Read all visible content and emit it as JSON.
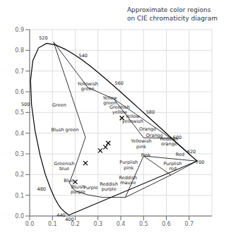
{
  "chart_data": {
    "type": "line",
    "title": "Approximate color regions",
    "subtitle": "on CIE chromaticity diagram",
    "xlim": [
      0,
      0.8
    ],
    "ylim": [
      0,
      0.9
    ],
    "xticks": [
      {
        "value": 0,
        "label": "0.0"
      },
      0.1,
      0.2,
      0.3,
      0.4,
      0.5,
      0.6,
      0.7
    ],
    "yticks": [
      {
        "value": 0,
        "label": "0.0"
      },
      0.1,
      0.2,
      0.3,
      0.4,
      0.5,
      0.6,
      0.7,
      0.8,
      0.9
    ],
    "grid": true,
    "series": [
      {
        "type": "line",
        "color": "#000000",
        "line_style": "solid",
        "x": [
          0.1741,
          0.1738,
          0.1726,
          0.1714,
          0.1703,
          0.1689,
          0.1669,
          0.1644,
          0.1611,
          0.1566,
          0.151,
          0.144,
          0.1355,
          0.1241,
          0.1096,
          0.0913,
          0.0687,
          0.0454,
          0.0235,
          0.0082,
          0.0039,
          0.0139,
          0.0389,
          0.0743,
          0.1142,
          0.1547,
          0.1929,
          0.2296,
          0.2658,
          0.3016,
          0.3373,
          0.3731,
          0.4087,
          0.4441,
          0.4788,
          0.5125,
          0.5448,
          0.5752,
          0.6029,
          0.627,
          0.6482,
          0.6658,
          0.6801,
          0.6915,
          0.7006,
          0.7079,
          0.714,
          0.719,
          0.723,
          0.726,
          0.7283,
          0.73,
          0.7311,
          0.732,
          0.7327,
          0.7334,
          0.734,
          0.7344,
          0.7347,
          0.1741
        ],
        "values": [
          0.005,
          0.0049,
          0.0048,
          0.0051,
          0.0058,
          0.0069,
          0.0086,
          0.0109,
          0.0138,
          0.0177,
          0.0227,
          0.0297,
          0.0399,
          0.0578,
          0.0868,
          0.1327,
          0.2007,
          0.295,
          0.4127,
          0.5384,
          0.6548,
          0.7502,
          0.812,
          0.8338,
          0.8262,
          0.8059,
          0.7816,
          0.7543,
          0.7243,
          0.6923,
          0.6589,
          0.6245,
          0.5896,
          0.5547,
          0.5202,
          0.4866,
          0.4544,
          0.4242,
          0.3965,
          0.3725,
          0.3514,
          0.334,
          0.3197,
          0.3083,
          0.2993,
          0.292,
          0.2859,
          0.2809,
          0.277,
          0.274,
          0.2717,
          0.27,
          0.2689,
          0.268,
          0.2673,
          0.2666,
          0.266,
          0.2656,
          0.2653,
          0.005
        ]
      },
      {
        "type": "line",
        "color": "#000000",
        "line_style": "solid",
        "x": [
          0.105,
          0.256
        ],
        "values": [
          0.84,
          0.62
        ]
      },
      {
        "type": "line",
        "color": "#000000",
        "line_style": "solid",
        "x": [
          0.256,
          0.37
        ],
        "values": [
          0.62,
          0.565
        ]
      },
      {
        "type": "line",
        "color": "#000000",
        "line_style": "solid",
        "x": [
          0.105,
          0.245
        ],
        "values": [
          0.84,
          0.38
        ]
      },
      {
        "type": "line",
        "color": "#000000",
        "line_style": "solid",
        "x": [
          0.245,
          0.192
        ],
        "values": [
          0.38,
          0.21
        ]
      },
      {
        "type": "line",
        "color": "#000000",
        "line_style": "solid",
        "x": [
          0.192,
          0.174
        ],
        "values": [
          0.21,
          0.16
        ]
      },
      {
        "type": "line",
        "color": "#000000",
        "line_style": "solid",
        "x": [
          0.174,
          0.198
        ],
        "values": [
          0.16,
          0.122
        ]
      },
      {
        "type": "line",
        "color": "#000000",
        "line_style": "solid",
        "x": [
          0.198,
          0.255
        ],
        "values": [
          0.122,
          0.102
        ]
      },
      {
        "type": "line",
        "color": "#000000",
        "line_style": "solid",
        "x": [
          0.255,
          0.32
        ],
        "values": [
          0.102,
          0.09
        ]
      },
      {
        "type": "line",
        "color": "#000000",
        "line_style": "solid",
        "x": [
          0.32,
          0.42
        ],
        "values": [
          0.09,
          0.09
        ]
      },
      {
        "type": "line",
        "color": "#000000",
        "line_style": "solid",
        "x": [
          0.42,
          0.62
        ],
        "values": [
          0.09,
          0.198
        ]
      },
      {
        "type": "line",
        "color": "#000000",
        "line_style": "solid",
        "x": [
          0.62,
          0.735
        ],
        "values": [
          0.198,
          0.265
        ]
      },
      {
        "type": "line",
        "color": "#000000",
        "line_style": "solid",
        "x": [
          0.37,
          0.62
        ],
        "values": [
          0.565,
          0.375
        ]
      },
      {
        "type": "line",
        "color": "#000000",
        "line_style": "solid",
        "x": [
          0.62,
          0.735
        ],
        "values": [
          0.375,
          0.265
        ]
      },
      {
        "type": "line",
        "color": "#000000",
        "line_style": "solid",
        "x": [
          0.5,
          0.62
        ],
        "values": [
          0.378,
          0.375
        ]
      },
      {
        "type": "line",
        "color": "#000000",
        "line_style": "solid",
        "x": [
          0.5,
          0.62
        ],
        "values": [
          0.29,
          0.198
        ]
      },
      {
        "type": "line",
        "color": "#000000",
        "line_style": "solid",
        "x": [
          0.5,
          0.735
        ],
        "values": [
          0.29,
          0.265
        ]
      },
      {
        "type": "line",
        "color": "#000000",
        "line_style": "solid",
        "x": [
          0.42,
          0.5
        ],
        "values": [
          0.09,
          0.29
        ]
      },
      {
        "type": "line",
        "color": "#000000",
        "line_style": "solid",
        "x": [
          0.37,
          0.5
        ],
        "values": [
          0.565,
          0.378
        ]
      },
      {
        "type": "scatter",
        "color": "#000000",
        "marker": "x",
        "x": [
          0.405,
          0.345,
          0.333,
          0.31,
          0.245,
          0.2
        ],
        "values": [
          0.473,
          0.352,
          0.333,
          0.316,
          0.255,
          0.165
        ]
      }
    ],
    "annotations": [
      {
        "text": "400",
        "x": 0.175,
        "y": -0.018
      },
      {
        "text": "440",
        "x": 0.138,
        "y": 0.002
      },
      {
        "text": "480",
        "x": 0.052,
        "y": 0.13
      },
      {
        "text": "500",
        "x": -0.018,
        "y": 0.538
      },
      {
        "text": "520",
        "x": 0.06,
        "y": 0.858
      },
      {
        "text": "540",
        "x": 0.235,
        "y": 0.775
      },
      {
        "text": "560",
        "x": 0.393,
        "y": 0.64
      },
      {
        "text": "580",
        "x": 0.53,
        "y": 0.5
      },
      {
        "text": "600",
        "x": 0.648,
        "y": 0.378
      },
      {
        "text": "620",
        "x": 0.71,
        "y": 0.31
      },
      {
        "text": "700",
        "x": 0.748,
        "y": 0.258
      },
      {
        "text": "Green",
        "x": 0.13,
        "y": 0.535
      },
      {
        "text": "Yellowish\ngreen",
        "x": 0.255,
        "y": 0.625
      },
      {
        "text": "Yellow\ngreen",
        "x": 0.352,
        "y": 0.558
      },
      {
        "text": "Greenish\nyellow",
        "x": 0.395,
        "y": 0.513
      },
      {
        "text": "Yellow\nyellowish",
        "x": 0.452,
        "y": 0.468
      },
      {
        "text": "Orange",
        "x": 0.518,
        "y": 0.418
      },
      {
        "text": "Orange",
        "x": 0.548,
        "y": 0.388
      },
      {
        "text": "Reddish\norange",
        "x": 0.612,
        "y": 0.36
      },
      {
        "text": "Red",
        "x": 0.66,
        "y": 0.295
      },
      {
        "text": "Purplish\nred",
        "x": 0.628,
        "y": 0.24
      },
      {
        "text": "Purplish\npink",
        "x": 0.435,
        "y": 0.245
      },
      {
        "text": "Pink",
        "x": 0.51,
        "y": 0.292
      },
      {
        "text": "Yellowish\npink",
        "x": 0.49,
        "y": 0.348
      },
      {
        "text": "Blush green",
        "x": 0.155,
        "y": 0.415
      },
      {
        "text": "Greenish\nblue",
        "x": 0.152,
        "y": 0.24
      },
      {
        "text": "Blue",
        "x": 0.172,
        "y": 0.172
      },
      {
        "text": "Bluish\npurple",
        "x": 0.212,
        "y": 0.128
      },
      {
        "text": "Purple",
        "x": 0.268,
        "y": 0.138
      },
      {
        "text": "Reddish\npurple",
        "x": 0.348,
        "y": 0.142
      },
      {
        "text": "Reddish\nmauve",
        "x": 0.432,
        "y": 0.172
      }
    ]
  }
}
